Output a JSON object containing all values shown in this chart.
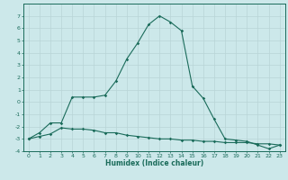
{
  "xlabel": "Humidex (Indice chaleur)",
  "background_color": "#cce8ea",
  "line_color": "#1a6b5a",
  "grid_color": "#b8d4d6",
  "x_values": [
    0,
    1,
    2,
    3,
    4,
    5,
    6,
    7,
    8,
    9,
    10,
    11,
    12,
    13,
    14,
    15,
    16,
    17,
    18,
    19,
    20,
    21,
    22,
    23
  ],
  "line1_y": [
    -3.0,
    -2.5,
    -1.7,
    -1.7,
    0.4,
    0.4,
    0.4,
    0.55,
    1.7,
    3.5,
    4.8,
    6.3,
    7.0,
    6.5,
    5.8,
    1.3,
    0.3,
    -1.4,
    -3.0,
    -3.1,
    -3.2,
    -3.5,
    -3.8,
    -3.5
  ],
  "line2_y": [
    -3.0,
    -2.8,
    -2.6,
    -2.1,
    -2.2,
    -2.2,
    -2.3,
    -2.5,
    -2.5,
    -2.7,
    -2.8,
    -2.9,
    -3.0,
    -3.0,
    -3.1,
    -3.1,
    -3.2,
    -3.2,
    -3.3,
    -3.3,
    -3.3,
    -3.4,
    -3.4,
    -3.5
  ],
  "ylim": [
    -4,
    8
  ],
  "xlim": [
    -0.5,
    23.5
  ],
  "yticks": [
    -4,
    -3,
    -2,
    -1,
    0,
    1,
    2,
    3,
    4,
    5,
    6,
    7
  ],
  "xticks": [
    0,
    1,
    2,
    3,
    4,
    5,
    6,
    7,
    8,
    9,
    10,
    11,
    12,
    13,
    14,
    15,
    16,
    17,
    18,
    19,
    20,
    21,
    22,
    23
  ]
}
